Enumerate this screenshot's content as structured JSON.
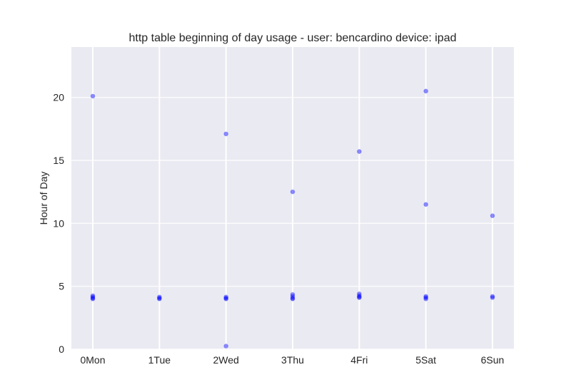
{
  "chart_data": {
    "type": "scatter",
    "title": "http table beginning of day usage -  user: bencardino device: ipad",
    "xlabel": "",
    "ylabel": "Hour of Day",
    "categories": [
      "0Mon",
      "1Tue",
      "2Wed",
      "3Thu",
      "4Fri",
      "5Sat",
      "6Sun"
    ],
    "ylim": [
      0,
      24
    ],
    "y_ticks": [
      0,
      5,
      10,
      15,
      20
    ],
    "grid": true,
    "point_color": "#0000ff",
    "background_color": "#eaeaf2",
    "grid_color": "#ffffff",
    "points": [
      {
        "x": "0Mon",
        "y": 20.1
      },
      {
        "x": "0Mon",
        "y": 4.25
      },
      {
        "x": "0Mon",
        "y": 4.15
      },
      {
        "x": "0Mon",
        "y": 4.05
      },
      {
        "x": "0Mon",
        "y": 4.0
      },
      {
        "x": "1Tue",
        "y": 4.15
      },
      {
        "x": "1Tue",
        "y": 4.05
      },
      {
        "x": "1Tue",
        "y": 4.0
      },
      {
        "x": "2Wed",
        "y": 17.1
      },
      {
        "x": "2Wed",
        "y": 4.15
      },
      {
        "x": "2Wed",
        "y": 4.05
      },
      {
        "x": "2Wed",
        "y": 4.0
      },
      {
        "x": "2Wed",
        "y": 0.25
      },
      {
        "x": "3Thu",
        "y": 12.5
      },
      {
        "x": "3Thu",
        "y": 4.35
      },
      {
        "x": "3Thu",
        "y": 4.2
      },
      {
        "x": "3Thu",
        "y": 4.05
      },
      {
        "x": "3Thu",
        "y": 4.0
      },
      {
        "x": "4Fri",
        "y": 15.7
      },
      {
        "x": "4Fri",
        "y": 4.4
      },
      {
        "x": "4Fri",
        "y": 4.25
      },
      {
        "x": "4Fri",
        "y": 4.15
      },
      {
        "x": "4Fri",
        "y": 4.1
      },
      {
        "x": "5Sat",
        "y": 20.5
      },
      {
        "x": "5Sat",
        "y": 11.5
      },
      {
        "x": "5Sat",
        "y": 4.2
      },
      {
        "x": "5Sat",
        "y": 4.1
      },
      {
        "x": "5Sat",
        "y": 4.0
      },
      {
        "x": "6Sun",
        "y": 10.6
      },
      {
        "x": "6Sun",
        "y": 4.2
      },
      {
        "x": "6Sun",
        "y": 4.1
      }
    ]
  }
}
